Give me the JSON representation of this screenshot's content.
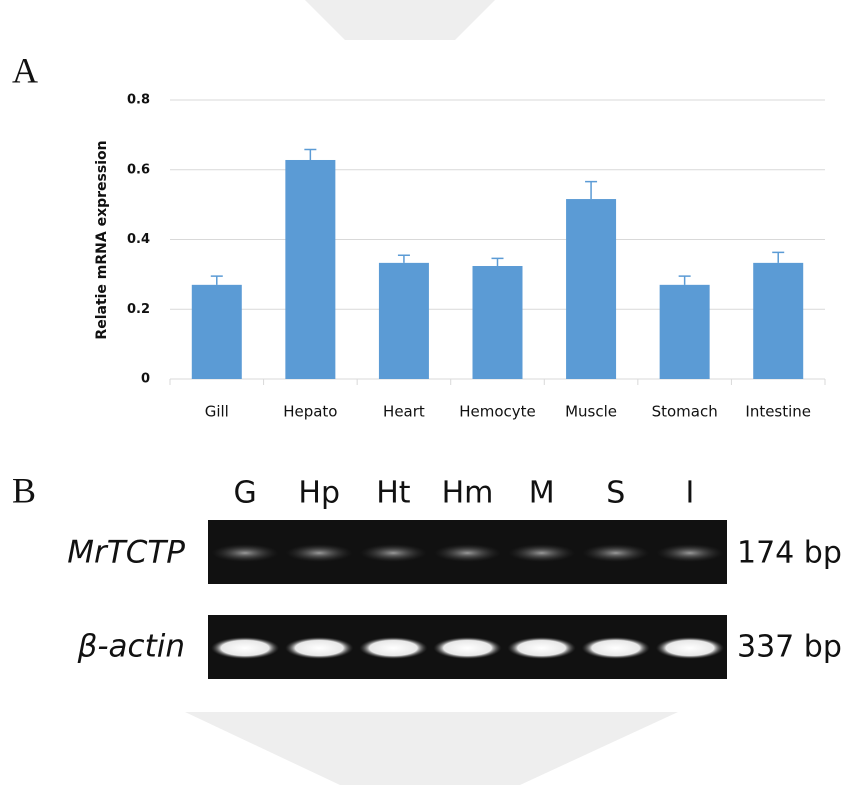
{
  "panel_a": {
    "label": "A",
    "chart_data": {
      "type": "bar",
      "y_label": "Relatie mRNA expression",
      "categories": [
        "Gill",
        "Hepato",
        "Heart",
        "Hemocyte",
        "Muscle",
        "Stomach",
        "Intestine"
      ],
      "values": [
        0.27,
        0.628,
        0.333,
        0.324,
        0.516,
        0.27,
        0.333
      ],
      "errors": [
        0.025,
        0.03,
        0.022,
        0.022,
        0.05,
        0.025,
        0.03
      ],
      "color": "#5b9bd5",
      "error_color": "#5b9bd5",
      "ylim": [
        0,
        0.8
      ],
      "yticks": [
        0,
        0.2,
        0.4,
        0.6,
        0.8
      ],
      "grid": true
    }
  },
  "panel_b": {
    "label": "B",
    "lanes": [
      "G",
      "Hp",
      "Ht",
      "Hm",
      "M",
      "S",
      "I"
    ],
    "rows": [
      {
        "gene": "MrTCTP",
        "size": "174 bp"
      },
      {
        "gene": "β-actin",
        "size": "337 bp"
      }
    ]
  }
}
